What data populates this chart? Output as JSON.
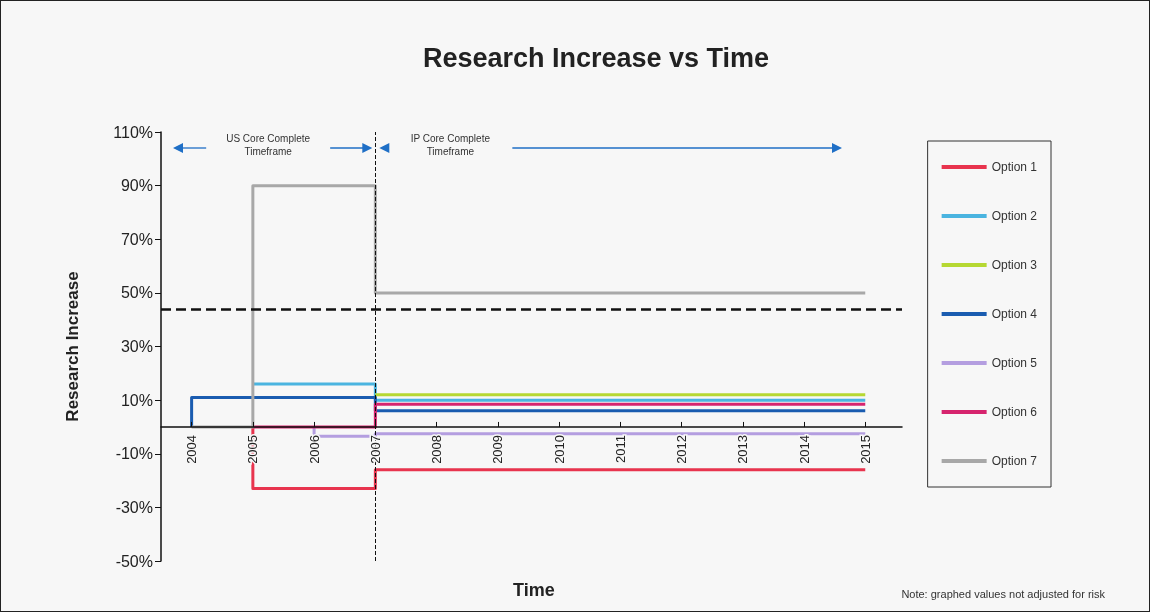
{
  "chart_data": {
    "type": "step",
    "title": "Research Increase vs Time",
    "ylabel": "Research Increase",
    "xlim": [
      2003.5,
      2015.6
    ],
    "xticks": [
      {
        "value": 2004,
        "label": "2004"
      },
      {
        "value": 2005,
        "label": "2005"
      },
      {
        "value": 2006,
        "label": "2006"
      },
      {
        "value": 2007,
        "label": "2007"
      },
      {
        "value": 2008,
        "label": "2008"
      },
      {
        "value": 2009,
        "label": "2009"
      },
      {
        "value": 2010,
        "label": "2010"
      },
      {
        "value": 2011,
        "label": "2011"
      },
      {
        "value": 2012,
        "label": "2012"
      },
      {
        "value": 2013,
        "label": "2013"
      },
      {
        "value": 2014,
        "label": "2014"
      },
      {
        "value": 2015,
        "label": "2015"
      }
    ],
    "ylim": [
      -50,
      110
    ],
    "yticks": [
      {
        "value": -50,
        "label": "-50%"
      },
      {
        "value": -30,
        "label": "-30%"
      },
      {
        "value": -10,
        "label": "-10%"
      },
      {
        "value": 10,
        "label": "10%"
      },
      {
        "value": 30,
        "label": "30%"
      },
      {
        "value": 50,
        "label": "50%"
      },
      {
        "value": 70,
        "label": "70%"
      },
      {
        "value": 90,
        "label": "90%"
      },
      {
        "value": 110,
        "label": "110%"
      }
    ],
    "series": [
      {
        "name": "Option 1",
        "color": "#e8344e",
        "x": [
          2005,
          2005,
          2007,
          2015
        ],
        "values": [
          0,
          -23,
          -16,
          -16
        ]
      },
      {
        "name": "Option 2",
        "color": "#4ab4e0",
        "x": [
          2005,
          2007,
          2015
        ],
        "values": [
          16,
          10,
          10
        ]
      },
      {
        "name": "Option 3",
        "color": "#b6d832",
        "x": [
          2007,
          2015
        ],
        "values": [
          12,
          12
        ]
      },
      {
        "name": "Option 4",
        "color": "#1a5cb0",
        "x": [
          2004,
          2004,
          2007,
          2015
        ],
        "values": [
          0,
          11,
          6,
          6
        ]
      },
      {
        "name": "Option 5",
        "color": "#b49ee0",
        "x": [
          2006,
          2006,
          2007,
          2015
        ],
        "values": [
          0,
          -3.5,
          -2.5,
          -2.5
        ]
      },
      {
        "name": "Option 6",
        "color": "#d6246e",
        "x": [
          2005,
          2007,
          2015
        ],
        "values": [
          0,
          8.5,
          8.5
        ]
      },
      {
        "name": "Option 7",
        "color": "#a8a8a8",
        "x": [
          2004,
          2005,
          2007,
          2015
        ],
        "values": [
          0,
          90,
          50,
          50
        ]
      }
    ],
    "ref_lines": [
      {
        "axis": "y",
        "value": 44,
        "color": "#111111",
        "line_style": "dashed"
      },
      {
        "axis": "x",
        "value": 2007,
        "color": "#111111",
        "line_style": "dashed"
      }
    ],
    "annotations": [
      "US Core Complete\nTimeframe",
      "IP Core Complete\nTimeframe",
      "Time",
      "Note: graphed values not adjusted for risk"
    ],
    "legend": "right",
    "grid": false,
    "marker": "none",
    "line_style": "solid"
  }
}
